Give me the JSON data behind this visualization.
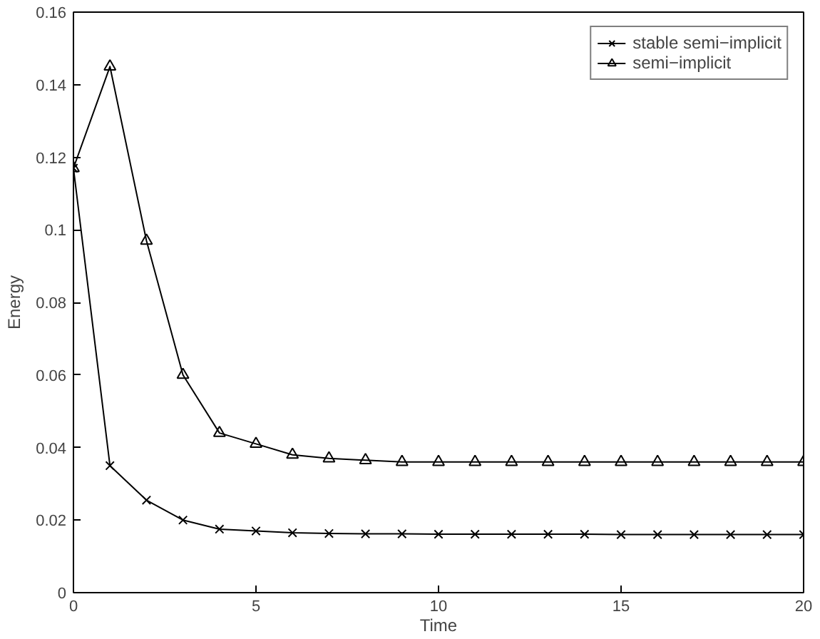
{
  "chart_data": {
    "type": "line",
    "xlabel": "Time",
    "ylabel": "Energy",
    "x": [
      0,
      1,
      2,
      3,
      4,
      5,
      6,
      7,
      8,
      9,
      10,
      11,
      12,
      13,
      14,
      15,
      16,
      17,
      18,
      19,
      20
    ],
    "series": [
      {
        "name": "stable semi−implicit",
        "color": "#000000",
        "marker": "cross",
        "values": [
          0.117,
          0.035,
          0.0255,
          0.02,
          0.0175,
          0.017,
          0.0165,
          0.0163,
          0.0162,
          0.0162,
          0.0161,
          0.0161,
          0.0161,
          0.0161,
          0.0161,
          0.016,
          0.016,
          0.016,
          0.016,
          0.016,
          0.016
        ]
      },
      {
        "name": "semi−implicit",
        "color": "#000000",
        "marker": "triangle",
        "values": [
          0.117,
          0.145,
          0.097,
          0.06,
          0.044,
          0.041,
          0.038,
          0.037,
          0.0365,
          0.036,
          0.036,
          0.036,
          0.036,
          0.036,
          0.036,
          0.036,
          0.036,
          0.036,
          0.036,
          0.036,
          0.036
        ]
      }
    ],
    "xlim": [
      0,
      20
    ],
    "ylim": [
      0,
      0.16
    ],
    "xticks": [
      0,
      5,
      10,
      15,
      20
    ],
    "yticks": [
      0,
      0.02,
      0.04,
      0.06,
      0.08,
      0.1,
      0.12,
      0.14,
      0.16
    ],
    "grid": false,
    "legend": "top right",
    "line_style": "solid"
  }
}
